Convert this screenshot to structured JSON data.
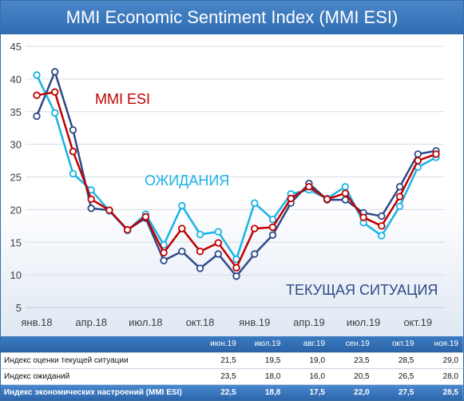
{
  "title": "MMI Economic Sentiment Index (MMI ESI)",
  "colors": {
    "esi": "#c00000",
    "current": "#2e4a87",
    "expect": "#1ab3e6",
    "title_bg": "#2f6db3"
  },
  "chart_data": {
    "type": "line",
    "title": "MMI Economic Sentiment Index (MMI ESI)",
    "xlabel": "",
    "ylabel": "",
    "ylim": [
      5,
      45
    ],
    "yticks": [
      5,
      10,
      15,
      20,
      25,
      30,
      35,
      40,
      45
    ],
    "grid": true,
    "x": [
      "янв.18",
      "фев.18",
      "мар.18",
      "апр.18",
      "май.18",
      "июн.18",
      "июл.18",
      "авг.18",
      "сен.18",
      "окт.18",
      "ноя.18",
      "дек.18",
      "янв.19",
      "фев.19",
      "мар.19",
      "апр.19",
      "май.19",
      "июн.19",
      "июл.19",
      "авг.19",
      "сен.19",
      "окт.19",
      "ноя.19"
    ],
    "xtick_labels": [
      "янв.18",
      "апр.18",
      "июл.18",
      "окт.18",
      "янв.19",
      "апр.19",
      "июл.19",
      "окт.19"
    ],
    "series": [
      {
        "name": "ТЕКУЩАЯ СИТУАЦИЯ",
        "color": "#2e4a87",
        "values": [
          34.3,
          41.1,
          32.2,
          20.2,
          19.9,
          16.9,
          18.7,
          12.2,
          13.6,
          11.0,
          13.2,
          9.8,
          13.2,
          16.1,
          21.0,
          24.0,
          21.5,
          21.5,
          19.5,
          19.0,
          23.5,
          28.5,
          29.0
        ]
      },
      {
        "name": "ОЖИДАНИЯ",
        "color": "#1ab3e6",
        "values": [
          40.6,
          34.8,
          25.5,
          23.0,
          19.8,
          16.8,
          19.3,
          14.6,
          20.6,
          16.2,
          16.6,
          12.4,
          21.0,
          18.5,
          22.4,
          23.0,
          21.7,
          23.5,
          18.0,
          16.0,
          20.5,
          26.5,
          28.0
        ]
      },
      {
        "name": "MMI ESI",
        "color": "#c00000",
        "values": [
          37.5,
          38.0,
          28.9,
          21.6,
          19.9,
          16.9,
          18.9,
          13.4,
          17.1,
          13.6,
          14.9,
          11.1,
          17.1,
          17.3,
          21.7,
          23.5,
          21.6,
          22.5,
          18.8,
          17.5,
          22.0,
          27.5,
          28.5
        ]
      }
    ],
    "annotations": [
      {
        "text": "MMI ESI",
        "series": "MMI ESI"
      },
      {
        "text": "ОЖИДАНИЯ",
        "series": "ОЖИДАНИЯ"
      },
      {
        "text": "ТЕКУЩАЯ СИТУАЦИЯ",
        "series": "ТЕКУЩАЯ СИТУАЦИЯ"
      }
    ]
  },
  "table": {
    "columns": [
      "июн.19",
      "июл.19",
      "авг.19",
      "сен.19",
      "окт.19",
      "ноя.19"
    ],
    "rows": [
      {
        "label": "Индекс оценки текущей ситуации",
        "values": [
          "21,5",
          "19,5",
          "19,0",
          "23,5",
          "28,5",
          "29,0"
        ],
        "highlight": false
      },
      {
        "label": "Индекс ожиданий",
        "values": [
          "23,5",
          "18,0",
          "16,0",
          "20,5",
          "26,5",
          "28,0"
        ],
        "highlight": false
      },
      {
        "label": "Индекс экономических настроений (MMI ESI)",
        "values": [
          "22,5",
          "18,8",
          "17,5",
          "22,0",
          "27,5",
          "28,5"
        ],
        "highlight": true
      }
    ]
  }
}
